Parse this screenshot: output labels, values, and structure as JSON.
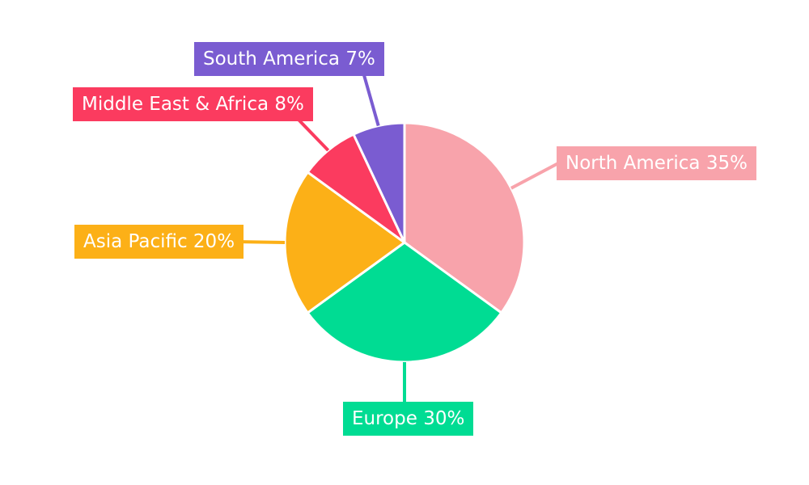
{
  "background_color": "#FFFFFF",
  "chart_data": {
    "type": "pie",
    "unit": "%",
    "start_angle": "top",
    "direction": "clockwise",
    "legend_position": "none",
    "label_text_color": "#FFFFFF",
    "slices": [
      {
        "label": "North America",
        "value": 35,
        "display_label": "North America 35%",
        "color": "#F8A3AB"
      },
      {
        "label": "Europe",
        "value": 30,
        "display_label": "Europe 30%",
        "color": "#00DC93"
      },
      {
        "label": "Asia Pacific",
        "value": 20,
        "display_label": "Asia Pacific 20%",
        "color": "#FCB017"
      },
      {
        "label": "Middle East & Africa",
        "value": 8,
        "display_label": "Middle East & Africa 8%",
        "color": "#FB3B5F"
      },
      {
        "label": "South America",
        "value": 7,
        "display_label": "South America 7%",
        "color": "#7A5CD1"
      }
    ]
  }
}
